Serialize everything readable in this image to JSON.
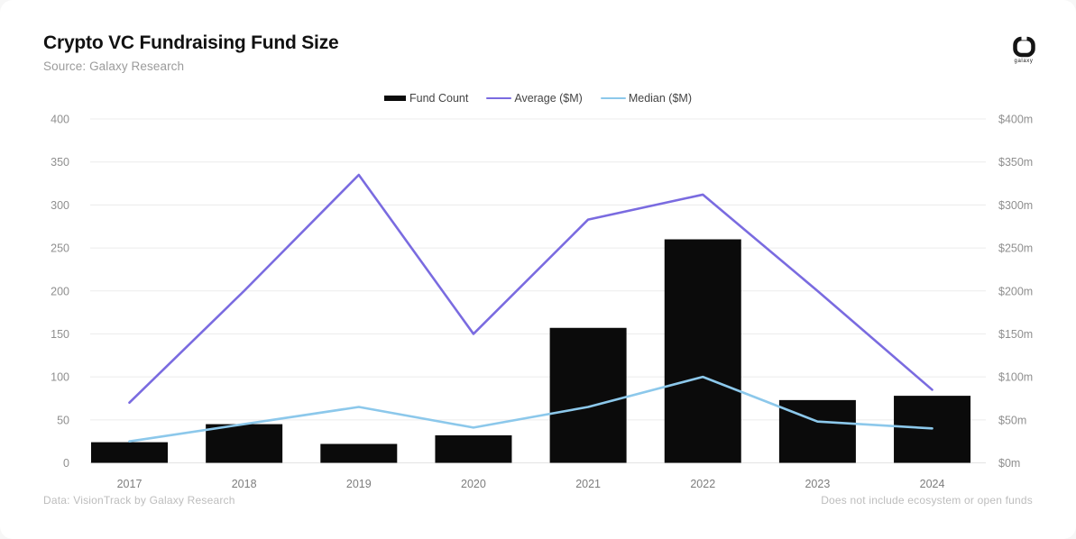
{
  "header": {
    "title": "Crypto VC Fundraising Fund Size",
    "source": "Source: Galaxy Research"
  },
  "logo": {
    "label": "galaxy"
  },
  "footer": {
    "left": "Data: VisionTrack by Galaxy Research",
    "right": "Does not include ecosystem or open funds"
  },
  "colors": {
    "bar": "#0b0b0b",
    "average": "#7a6be0",
    "median": "#8cc8eb",
    "grid": "#ececec",
    "axis_line": "#e3e3e3",
    "axis_text": "#8f8f8f",
    "x_text": "#7d7d7d"
  },
  "chart_data": {
    "type": "combo",
    "title": "Crypto VC Fundraising Fund Size",
    "categories": [
      "2017",
      "2018",
      "2019",
      "2020",
      "2021",
      "2022",
      "2023",
      "2024"
    ],
    "series": [
      {
        "name": "Fund Count",
        "type": "bar",
        "axis": "left",
        "color": "#0b0b0b",
        "values": [
          24,
          45,
          22,
          32,
          157,
          260,
          73,
          78
        ]
      },
      {
        "name": "Average ($M)",
        "type": "line",
        "axis": "right",
        "color": "#7a6be0",
        "values": [
          70,
          200,
          335,
          150,
          283,
          312,
          200,
          85
        ]
      },
      {
        "name": "Median ($M)",
        "type": "line",
        "axis": "right",
        "color": "#8cc8eb",
        "values": [
          25,
          45,
          65,
          41,
          65,
          100,
          48,
          40
        ]
      }
    ],
    "left_axis": {
      "min": 0,
      "max": 400,
      "step": 50,
      "tick_labels": [
        "0",
        "50",
        "100",
        "150",
        "200",
        "250",
        "300",
        "350",
        "400"
      ]
    },
    "right_axis": {
      "min": 0,
      "max": 400,
      "step": 50,
      "tick_labels": [
        "$0m",
        "$50m",
        "$100m",
        "$150m",
        "$200m",
        "$250m",
        "$300m",
        "$350m",
        "$400m"
      ]
    },
    "grid": true,
    "legend_position": "top"
  }
}
